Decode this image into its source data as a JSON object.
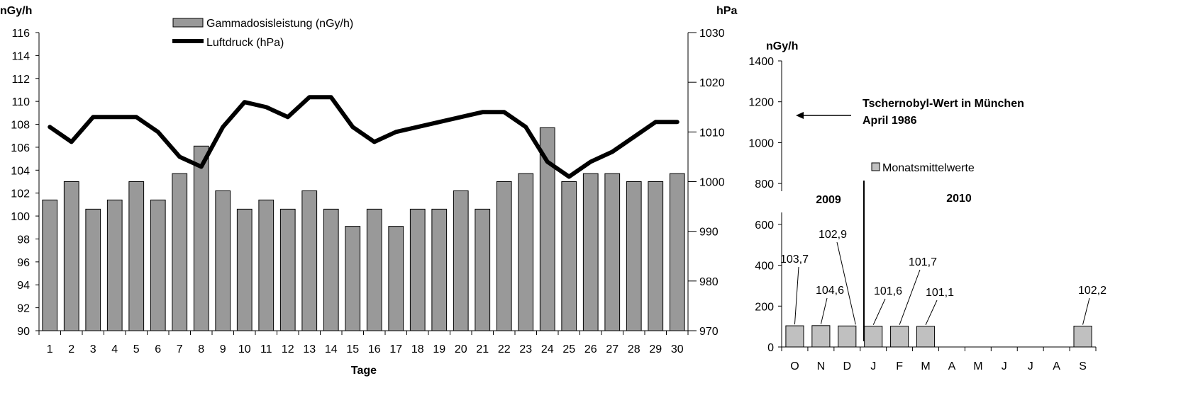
{
  "chart_data": [
    {
      "type": "bar+line",
      "title": "",
      "xlabel": "Tage",
      "ylabel_left": "nGy/h",
      "ylabel_right": "hPa",
      "categories": [
        "1",
        "2",
        "3",
        "4",
        "5",
        "6",
        "7",
        "8",
        "9",
        "10",
        "11",
        "12",
        "13",
        "14",
        "15",
        "16",
        "17",
        "18",
        "19",
        "20",
        "21",
        "22",
        "23",
        "24",
        "25",
        "26",
        "27",
        "28",
        "29",
        "30"
      ],
      "ylim_left": [
        90,
        116
      ],
      "ylim_right": [
        970,
        1030
      ],
      "yticks_left": [
        "90",
        "92",
        "94",
        "96",
        "98",
        "100",
        "102",
        "104",
        "106",
        "108",
        "110",
        "112",
        "114",
        "116"
      ],
      "yticks_right": [
        "970",
        "980",
        "990",
        "1000",
        "1010",
        "1020",
        "1030"
      ],
      "legend_placement": "top-left",
      "series": [
        {
          "name": "Gammadosisleistung (nGy/h)",
          "kind": "bar",
          "axis": "left",
          "color": "#999999",
          "values": [
            101.4,
            103.0,
            100.6,
            101.4,
            103.0,
            101.4,
            103.7,
            106.1,
            102.2,
            100.6,
            101.4,
            100.6,
            102.2,
            100.6,
            99.1,
            100.6,
            99.1,
            100.6,
            100.6,
            102.2,
            100.6,
            103.0,
            103.7,
            107.7,
            103.0,
            103.7,
            103.7,
            103.0,
            103.0,
            103.7
          ]
        },
        {
          "name": "Luftdruck (hPa)",
          "kind": "line",
          "axis": "right",
          "color": "#000000",
          "values": [
            1011,
            1008,
            1013,
            1013,
            1013,
            1010,
            1005,
            1003,
            1011,
            1016,
            1015,
            1013,
            1017,
            1017,
            1011,
            1008,
            1010,
            1011,
            1012,
            1013,
            1014,
            1014,
            1011,
            1004,
            1001,
            1004,
            1006,
            1009,
            1012,
            1012
          ]
        }
      ]
    },
    {
      "type": "bar",
      "title": "",
      "ylabel": "nGy/h",
      "categories": [
        "O",
        "N",
        "D",
        "J",
        "F",
        "M",
        "A",
        "M",
        "J",
        "J",
        "A",
        "S"
      ],
      "ylim": [
        0,
        1400
      ],
      "yticks": [
        "0",
        "200",
        "400",
        "600",
        "800",
        "1000",
        "1200",
        "1400"
      ],
      "year_labels": [
        "2009",
        "2010"
      ],
      "series": [
        {
          "name": "Monatsmittelwerte",
          "color": "#c0c0c0",
          "values": [
            103.7,
            104.6,
            102.9,
            101.6,
            101.7,
            101.1,
            null,
            null,
            null,
            null,
            null,
            102.2
          ],
          "labels": [
            "103,7",
            "104,6",
            "102,9",
            "101,6",
            "101,7",
            "101,1",
            "",
            "",
            "",
            "",
            "",
            "102,2"
          ]
        }
      ],
      "annotation": {
        "line1": "Tschernobyl-Wert in München",
        "line2": "April 1986",
        "value": 1130
      }
    }
  ]
}
